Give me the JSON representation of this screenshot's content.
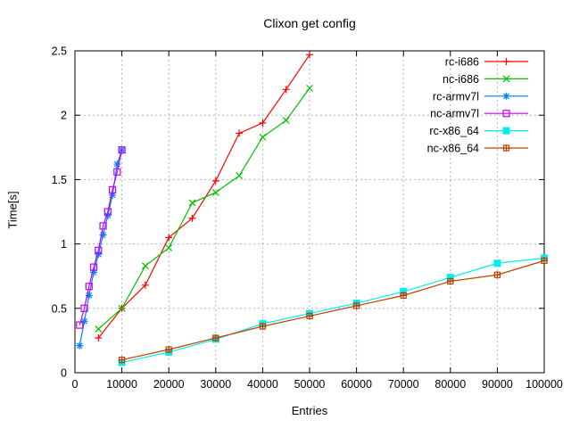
{
  "chart_data": {
    "type": "line",
    "title": "Clixon get config",
    "xlabel": "Entries",
    "ylabel": "Time[s]",
    "xlim": [
      0,
      100000
    ],
    "ylim": [
      0,
      2.5
    ],
    "x_ticks": [
      0,
      10000,
      20000,
      30000,
      40000,
      50000,
      60000,
      70000,
      80000,
      90000,
      100000
    ],
    "x_tick_labels": [
      "0",
      "10000",
      "20000",
      "30000",
      "40000",
      "50000",
      "60000",
      "70000",
      "80000",
      "90000",
      "100000"
    ],
    "y_ticks": [
      0,
      0.5,
      1,
      1.5,
      2,
      2.5
    ],
    "y_tick_labels": [
      "0",
      "0.5",
      "1",
      "1.5",
      "2",
      "2.5"
    ],
    "grid": true,
    "legend_position": "top-right-inside",
    "series": [
      {
        "name": "rc-i686",
        "color": "#ff0000",
        "marker": "plus",
        "x": [
          5000,
          10000,
          15000,
          20000,
          25000,
          30000,
          35000,
          40000,
          45000,
          50000
        ],
        "y": [
          0.27,
          0.5,
          0.68,
          1.05,
          1.2,
          1.49,
          1.86,
          1.94,
          2.2,
          2.47
        ]
      },
      {
        "name": "nc-i686",
        "color": "#00c000",
        "marker": "cross",
        "x": [
          5000,
          10000,
          15000,
          20000,
          25000,
          30000,
          35000,
          40000,
          45000,
          50000
        ],
        "y": [
          0.34,
          0.5,
          0.83,
          0.97,
          1.32,
          1.4,
          1.53,
          1.83,
          1.96,
          2.21
        ]
      },
      {
        "name": "rc-armv7l",
        "color": "#0080ff",
        "marker": "asterisk",
        "x": [
          1000,
          2000,
          3000,
          4000,
          5000,
          6000,
          7000,
          8000,
          9000,
          10000
        ],
        "y": [
          0.21,
          0.4,
          0.6,
          0.78,
          0.92,
          1.07,
          1.22,
          1.38,
          1.62,
          1.73
        ]
      },
      {
        "name": "nc-armv7l",
        "color": "#c000ff",
        "marker": "open-square",
        "x": [
          1000,
          2000,
          3000,
          4000,
          5000,
          6000,
          7000,
          8000,
          9000,
          10000
        ],
        "y": [
          0.37,
          0.5,
          0.67,
          0.82,
          0.95,
          1.14,
          1.25,
          1.42,
          1.56,
          1.73
        ]
      },
      {
        "name": "rc-x86_64",
        "color": "#00eeee",
        "marker": "filled-square",
        "x": [
          10000,
          20000,
          30000,
          40000,
          50000,
          60000,
          70000,
          80000,
          90000,
          100000
        ],
        "y": [
          0.08,
          0.16,
          0.26,
          0.38,
          0.46,
          0.54,
          0.63,
          0.74,
          0.85,
          0.89
        ]
      },
      {
        "name": "nc-x86_64",
        "color": "#c04000",
        "marker": "square-plus",
        "x": [
          10000,
          20000,
          30000,
          40000,
          50000,
          60000,
          70000,
          80000,
          90000,
          100000
        ],
        "y": [
          0.1,
          0.18,
          0.27,
          0.36,
          0.44,
          0.52,
          0.6,
          0.71,
          0.76,
          0.87
        ]
      }
    ]
  },
  "colors": {
    "axis": "#000000",
    "grid": "#b4b4b4",
    "background": "#ffffff",
    "text": "#000000"
  }
}
